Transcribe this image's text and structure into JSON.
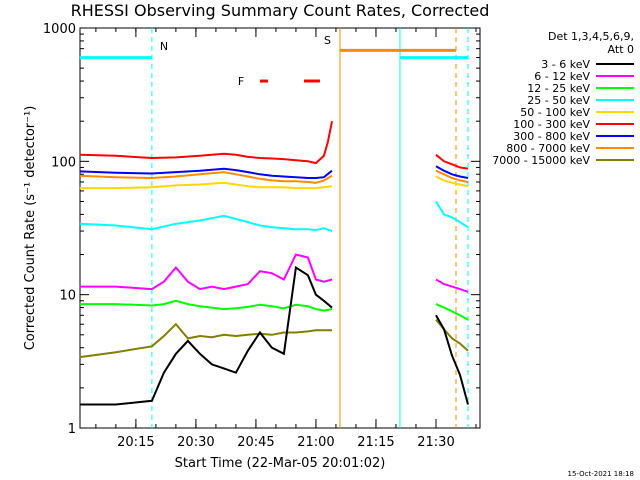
{
  "chart_data": {
    "type": "line",
    "title": "RHESSI Observing Summary Count Rates, Corrected",
    "xlabel": "Start Time (22-Mar-05 20:01:02)",
    "ylabel": "Corrected Count Rate (s⁻¹ detector⁻¹)",
    "y_scale": "log",
    "ylim": [
      1,
      1000
    ],
    "y_ticks": [
      "1",
      "10",
      "100",
      "1000"
    ],
    "xlim": [
      "20:01:02",
      "21:41:00"
    ],
    "x_ticks": [
      "20:15",
      "20:30",
      "20:45",
      "21:00",
      "21:15",
      "21:30"
    ],
    "legend_header": [
      "Det 1,3,4,5,6,9,",
      "Att 0"
    ],
    "legend_position": "right",
    "grid": false,
    "timestamp": "15-Oct-2021 18:18",
    "annotations": [
      {
        "text": "N",
        "color": "#00ffff",
        "x": "20:19"
      },
      {
        "text": "F",
        "color": "#ff0000",
        "x": "20:43"
      },
      {
        "text": "S",
        "color": "#ff8c00",
        "x": "21:05"
      }
    ],
    "flag_bars": [
      {
        "name": "N",
        "color": "#00ffff",
        "y": 600,
        "ranges": [
          [
            "20:01",
            "20:19"
          ],
          [
            "21:21",
            "21:38"
          ]
        ]
      },
      {
        "name": "S",
        "color": "#ff8c00",
        "y": 680,
        "ranges": [
          [
            "21:06",
            "21:35"
          ]
        ]
      },
      {
        "name": "F",
        "color": "#ff0000",
        "y": 400,
        "ranges": [
          [
            "20:46",
            "20:48"
          ],
          [
            "20:57",
            "21:01"
          ]
        ]
      }
    ],
    "vertical_lines": [
      {
        "x": "20:19",
        "color": "#00ffff",
        "dashed": true
      },
      {
        "x": "21:06",
        "color": "#ff8c00",
        "dashed": false
      },
      {
        "x": "21:21",
        "color": "#00ffff",
        "dashed": false
      },
      {
        "x": "21:35",
        "color": "#ff8c00",
        "dashed": true
      },
      {
        "x": "21:38",
        "color": "#00ffff",
        "dashed": true
      }
    ],
    "series": [
      {
        "name": "3 - 6 keV",
        "color": "#000000",
        "x": [
          "20:01",
          "20:10",
          "20:19",
          "20:22",
          "20:25",
          "20:28",
          "20:31",
          "20:34",
          "20:37",
          "20:40",
          "20:43",
          "20:46",
          "20:49",
          "20:52",
          "20:55",
          "20:58",
          "21:00",
          "21:02",
          "21:04",
          "21:30",
          "21:32",
          "21:34",
          "21:36",
          "21:38"
        ],
        "y": [
          1.5,
          1.5,
          1.6,
          2.6,
          3.6,
          4.5,
          3.6,
          3.0,
          2.8,
          2.6,
          3.8,
          5.2,
          4.0,
          3.6,
          16,
          14,
          10,
          9,
          8,
          7,
          5.5,
          3.5,
          2.5,
          1.5
        ]
      },
      {
        "name": "6 - 12 keV",
        "color": "#ff00ff",
        "x": [
          "20:01",
          "20:10",
          "20:19",
          "20:22",
          "20:25",
          "20:28",
          "20:31",
          "20:34",
          "20:37",
          "20:40",
          "20:43",
          "20:46",
          "20:49",
          "20:52",
          "20:55",
          "20:58",
          "21:00",
          "21:02",
          "21:04",
          "21:30",
          "21:32",
          "21:34",
          "21:36",
          "21:38"
        ],
        "y": [
          11.5,
          11.5,
          11,
          12.5,
          16,
          12.5,
          11,
          11.5,
          11,
          11.5,
          12,
          15,
          14.5,
          13,
          20,
          19,
          13,
          12.5,
          13,
          13,
          12,
          11.5,
          11,
          10.5
        ]
      },
      {
        "name": "12 - 25 keV",
        "color": "#00ff00",
        "x": [
          "20:01",
          "20:10",
          "20:19",
          "20:22",
          "20:25",
          "20:28",
          "20:31",
          "20:34",
          "20:37",
          "20:40",
          "20:43",
          "20:46",
          "20:49",
          "20:52",
          "20:55",
          "20:58",
          "21:00",
          "21:02",
          "21:04",
          "21:30",
          "21:32",
          "21:34",
          "21:36",
          "21:38"
        ],
        "y": [
          8.5,
          8.5,
          8.3,
          8.5,
          9,
          8.5,
          8.2,
          8,
          7.8,
          7.9,
          8.1,
          8.4,
          8.2,
          7.9,
          8.4,
          8.2,
          7.8,
          7.6,
          7.8,
          8.5,
          8,
          7.5,
          7,
          6.5
        ]
      },
      {
        "name": "25 - 50 keV",
        "color": "#00ffff",
        "x": [
          "20:01",
          "20:10",
          "20:19",
          "20:25",
          "20:31",
          "20:37",
          "20:40",
          "20:43",
          "20:46",
          "20:49",
          "20:52",
          "20:55",
          "20:58",
          "21:00",
          "21:02",
          "21:04",
          "21:30",
          "21:32",
          "21:34",
          "21:36",
          "21:38"
        ],
        "y": [
          34,
          33,
          31,
          34,
          36,
          39,
          37,
          35,
          33,
          32,
          31.5,
          31,
          31,
          30.5,
          31.5,
          30,
          50,
          40,
          38,
          35,
          32
        ]
      },
      {
        "name": "50 - 100 keV",
        "color": "#ffd700",
        "x": [
          "20:01",
          "20:10",
          "20:19",
          "20:25",
          "20:31",
          "20:37",
          "20:40",
          "20:43",
          "20:46",
          "20:49",
          "20:52",
          "20:55",
          "20:58",
          "21:00",
          "21:02",
          "21:04",
          "21:30",
          "21:32",
          "21:34",
          "21:36",
          "21:38"
        ],
        "y": [
          63,
          63,
          64,
          66,
          67,
          69,
          67,
          65,
          64,
          64,
          64,
          63,
          63,
          63,
          64,
          65,
          77,
          72,
          69,
          67,
          65
        ]
      },
      {
        "name": "100 - 300 keV",
        "color": "#ff0000",
        "x": [
          "20:01",
          "20:10",
          "20:19",
          "20:25",
          "20:31",
          "20:37",
          "20:40",
          "20:43",
          "20:46",
          "20:49",
          "20:52",
          "20:55",
          "20:58",
          "21:00",
          "21:02",
          "21:03",
          "21:04",
          "21:30",
          "21:32",
          "21:34",
          "21:36",
          "21:38"
        ],
        "y": [
          112,
          110,
          106,
          107,
          110,
          114,
          112,
          108,
          106,
          105,
          104,
          102,
          100,
          97,
          110,
          140,
          200,
          112,
          100,
          95,
          90,
          88
        ]
      },
      {
        "name": "300 - 800 keV",
        "color": "#0000ff",
        "x": [
          "20:01",
          "20:10",
          "20:19",
          "20:25",
          "20:31",
          "20:37",
          "20:40",
          "20:43",
          "20:46",
          "20:49",
          "20:52",
          "20:55",
          "20:58",
          "21:00",
          "21:02",
          "21:04",
          "21:30",
          "21:32",
          "21:34",
          "21:36",
          "21:38"
        ],
        "y": [
          84,
          82,
          81,
          83,
          85,
          88,
          86,
          83,
          80,
          78,
          77,
          76,
          75,
          75,
          76,
          85,
          92,
          85,
          80,
          77,
          75
        ]
      },
      {
        "name": "800 - 7000 keV",
        "color": "#ff8c00",
        "x": [
          "20:01",
          "20:10",
          "20:19",
          "20:25",
          "20:31",
          "20:37",
          "20:40",
          "20:43",
          "20:46",
          "20:49",
          "20:52",
          "20:55",
          "20:58",
          "21:00",
          "21:02",
          "21:04",
          "21:30",
          "21:32",
          "21:34",
          "21:36",
          "21:38"
        ],
        "y": [
          78,
          76,
          75,
          77,
          80,
          83,
          80,
          77,
          74,
          72,
          71,
          71,
          70,
          69,
          72,
          78,
          85,
          80,
          75,
          72,
          70
        ]
      },
      {
        "name": "7000 - 15000 keV",
        "color": "#808000",
        "x": [
          "20:01",
          "20:10",
          "20:19",
          "20:22",
          "20:25",
          "20:28",
          "20:31",
          "20:34",
          "20:37",
          "20:40",
          "20:43",
          "20:46",
          "20:49",
          "20:52",
          "20:55",
          "20:58",
          "21:00",
          "21:02",
          "21:04",
          "21:30",
          "21:32",
          "21:34",
          "21:36",
          "21:38"
        ],
        "y": [
          3.4,
          3.7,
          4.1,
          4.9,
          6,
          4.7,
          4.9,
          4.8,
          5,
          4.9,
          5,
          5.1,
          5,
          5.2,
          5.2,
          5.3,
          5.4,
          5.4,
          5.4,
          6.5,
          5.5,
          4.7,
          4.3,
          3.8
        ]
      }
    ]
  }
}
